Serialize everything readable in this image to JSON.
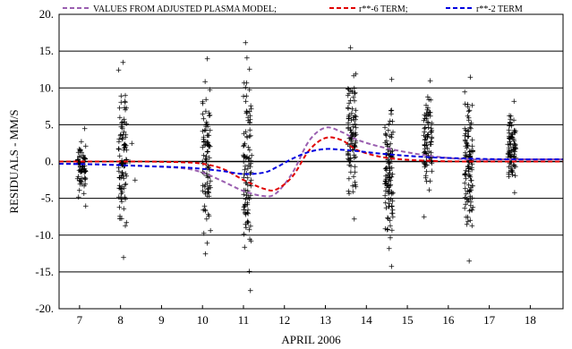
{
  "chart_data": {
    "type": "scatter",
    "xlabel": "APRIL 2006",
    "ylabel": "RESIDUALS - MM/S",
    "xlim": [
      6.5,
      18.8
    ],
    "ylim": [
      -20,
      20
    ],
    "x_ticks": [
      7,
      8,
      9,
      10,
      11,
      12,
      13,
      14,
      15,
      16,
      17,
      18
    ],
    "x_tick_labels": [
      "7",
      "8",
      "9",
      "10",
      "11",
      "12",
      "13",
      "14",
      "15",
      "16",
      "17",
      "18"
    ],
    "y_ticks": [
      20,
      15,
      10,
      5,
      0,
      -5,
      -10,
      -15,
      -20
    ],
    "y_tick_labels": [
      "20.",
      "15.",
      "10.",
      "5.",
      "0.",
      "-5.",
      "-10.",
      "-15.",
      "-20."
    ],
    "grid": "horizontal",
    "legend_position": "top",
    "series": [
      {
        "name": "VALUES FROM ADJUSTED PLASMA MODEL;",
        "style": "dashed",
        "color": "#9a5fb0",
        "x": [
          6.5,
          7.5,
          8.5,
          9.5,
          10.0,
          10.5,
          11.0,
          11.5,
          11.8,
          12.2,
          12.6,
          13.0,
          13.4,
          13.8,
          14.5,
          15.5,
          16.5,
          17.5,
          18.8
        ],
        "y": [
          -0.3,
          -0.4,
          -0.6,
          -0.9,
          -1.5,
          -2.7,
          -4.0,
          -4.7,
          -4.3,
          -1.5,
          2.8,
          4.6,
          4.0,
          2.9,
          1.8,
          0.8,
          0.3,
          0.3,
          0.3
        ]
      },
      {
        "name": "r**-6 TERM;",
        "style": "dashed",
        "color": "#e00000",
        "x": [
          6.5,
          7.5,
          8.5,
          9.5,
          10.0,
          10.5,
          11.0,
          11.5,
          11.8,
          12.2,
          12.6,
          13.0,
          13.4,
          13.8,
          14.5,
          15.5,
          16.5,
          17.5,
          18.8
        ],
        "y": [
          0.0,
          0.0,
          0.0,
          -0.1,
          -0.3,
          -1.0,
          -2.5,
          -3.7,
          -3.8,
          -2.0,
          1.5,
          3.2,
          2.9,
          1.5,
          0.5,
          0.1,
          0.0,
          0.0,
          0.0
        ]
      },
      {
        "name": "r**-2 TERM",
        "style": "dashed",
        "color": "#0000e0",
        "x": [
          6.5,
          7.5,
          8.5,
          9.5,
          10.0,
          10.5,
          11.0,
          11.5,
          11.8,
          12.2,
          12.6,
          13.0,
          13.4,
          13.8,
          14.5,
          15.5,
          16.5,
          17.5,
          18.8
        ],
        "y": [
          -0.3,
          -0.4,
          -0.6,
          -0.8,
          -1.0,
          -1.3,
          -1.7,
          -1.5,
          -0.8,
          0.4,
          1.3,
          1.7,
          1.6,
          1.4,
          1.0,
          0.6,
          0.4,
          0.3,
          0.3
        ]
      }
    ],
    "residual_clusters": [
      {
        "day": 7.05,
        "min": -6.0,
        "max": 4.5,
        "count": 70
      },
      {
        "day": 8.05,
        "min": -13.0,
        "max": 13.5,
        "count": 95
      },
      {
        "day": 8.3,
        "min": -2.5,
        "max": 2.5,
        "count": 3
      },
      {
        "day": 10.1,
        "min": -12.5,
        "max": 14.0,
        "count": 90
      },
      {
        "day": 11.1,
        "min": -17.5,
        "max": 16.2,
        "count": 100
      },
      {
        "day": 13.65,
        "min": -7.8,
        "max": 15.5,
        "count": 95
      },
      {
        "day": 14.55,
        "min": -14.2,
        "max": 11.2,
        "count": 110
      },
      {
        "day": 15.5,
        "min": -7.5,
        "max": 11.0,
        "count": 85
      },
      {
        "day": 16.5,
        "min": -13.5,
        "max": 11.5,
        "count": 110
      },
      {
        "day": 17.55,
        "min": -4.2,
        "max": 8.2,
        "count": 85
      }
    ]
  }
}
